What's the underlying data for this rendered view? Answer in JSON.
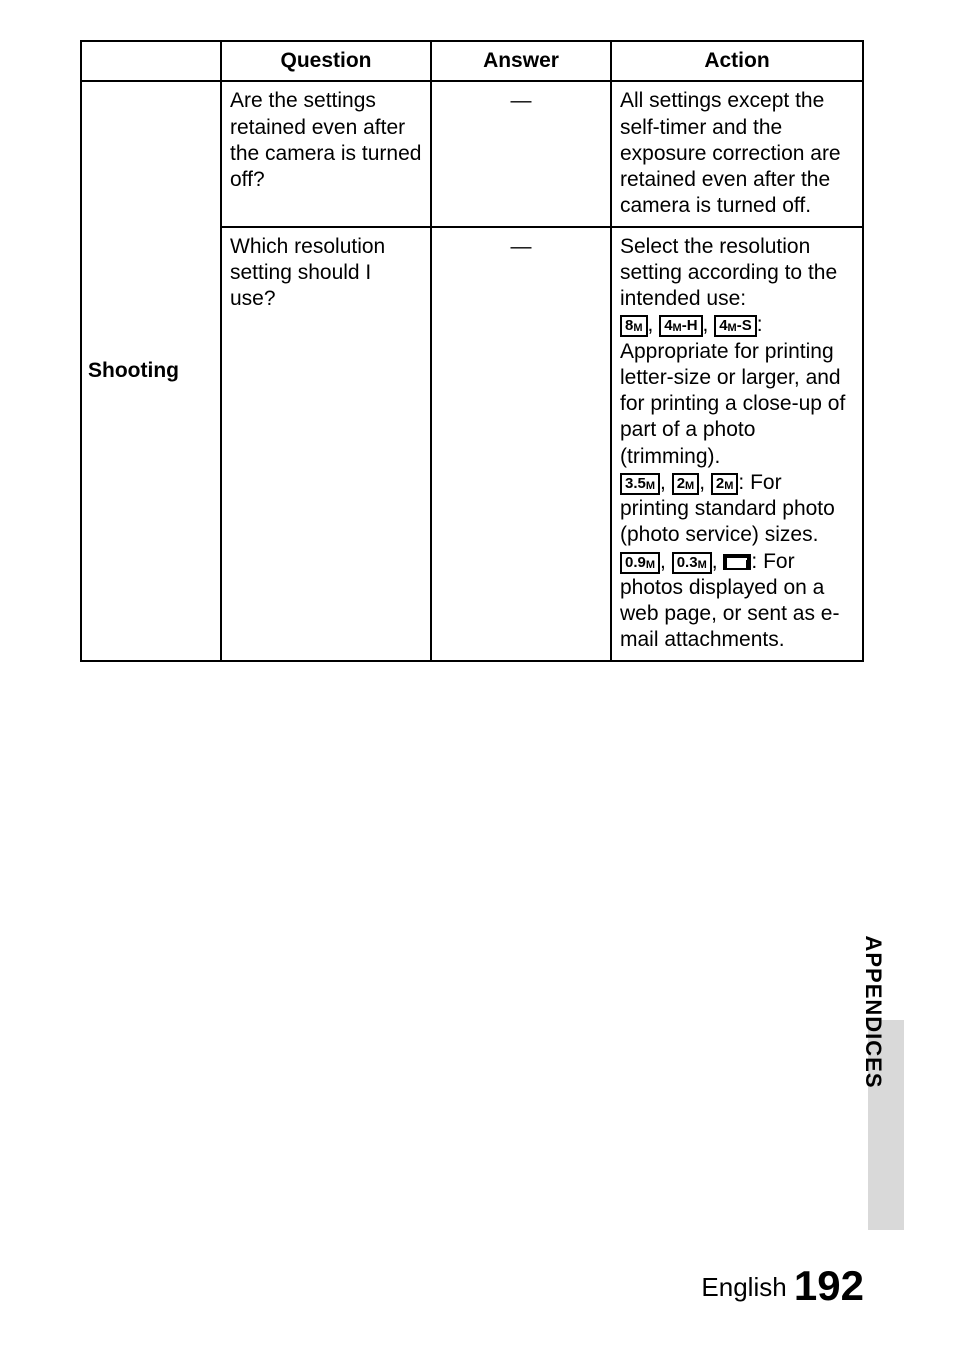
{
  "table": {
    "headers": {
      "question": "Question",
      "answer": "Answer",
      "action": "Action"
    },
    "category": "Shooting",
    "rows": [
      {
        "question": "Are the settings retained even after the camera is turned off?",
        "answer": "—",
        "action_plain": "All settings except the self-timer and the exposure correction are retained even after the camera is turned off."
      },
      {
        "question": "Which resolution setting should I use?",
        "answer": "—",
        "action": {
          "lead": "Select the resolution setting according to the intended use:",
          "group1_icons": [
            "8M",
            "4M-H",
            "4M-S"
          ],
          "group1_text": ": Appropriate for printing letter-size or larger, and for printing a close-up of part of a photo (trimming).",
          "group2_icons": [
            "3.5M",
            "2M",
            "2M"
          ],
          "group2_text": ": For printing standard photo (photo service) sizes.",
          "group3_icons": [
            "0.9M",
            "0.3M",
            "MAIL"
          ],
          "group3_text": ": For photos displayed on a web page, or sent as e-mail attachments."
        }
      }
    ]
  },
  "side_tab": "APPENDICES",
  "footer_text": "English",
  "page_number": "192"
}
